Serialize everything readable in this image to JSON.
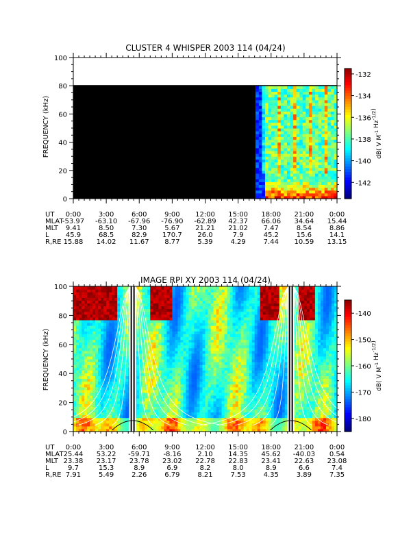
{
  "chart_data": [
    {
      "type": "heatmap",
      "title": "CLUSTER 4 WHISPER 2003 114 (04/24)",
      "ylabel": "FREQUENCY (kHz)",
      "ylim": [
        0,
        100
      ],
      "yticks": [
        0,
        20,
        40,
        60,
        80,
        100
      ],
      "x_ticks": [
        "0:00",
        "3:00",
        "6:00",
        "9:00",
        "12:00",
        "15:00",
        "18:00",
        "21:00",
        "0:00"
      ],
      "colorbar": {
        "label_prefix": "dB( V M",
        "label_exp1": "-1",
        "label_mid": " Hz",
        "label_exp2": "-1/2",
        "label_suffix": ")",
        "range": [
          -143.5,
          -131.5
        ],
        "ticks": [
          -132,
          -134,
          -136,
          -138,
          -140,
          -142
        ]
      },
      "data_extent": {
        "freq_max_khz": 80,
        "data_start_hour": 16.6
      },
      "ephemeris": {
        "rows": [
          {
            "name": "UT",
            "values": [
              "0:00",
              "3:00",
              "6:00",
              "9:00",
              "12:00",
              "15:00",
              "18:00",
              "21:00",
              "0:00"
            ]
          },
          {
            "name": "MLAT",
            "values": [
              "-53.97",
              "-63.10",
              "-67.96",
              "-76.90",
              "-62.89",
              "42.37",
              "66.06",
              "34.64",
              "15.44"
            ]
          },
          {
            "name": "MLT",
            "values": [
              "9.41",
              "8.50",
              "7.30",
              "5.67",
              "21.21",
              "21.02",
              "7.47",
              "8.54",
              "8.86"
            ]
          },
          {
            "name": "L",
            "values": [
              "45.9",
              "68.5",
              "82.9",
              "170.7",
              "26.0",
              "7.9",
              "45.2",
              "15.6",
              "14.1"
            ]
          },
          {
            "name": "R,RE",
            "values": [
              "15.88",
              "14.02",
              "11.67",
              "8.77",
              "5.39",
              "4.29",
              "7.44",
              "10.59",
              "13.15"
            ]
          }
        ]
      }
    },
    {
      "type": "heatmap",
      "title": "IMAGE RPI XY 2003 114 (04/24)",
      "ylabel": "FREQUENCY (kHz)",
      "ylim": [
        0,
        100
      ],
      "yticks": [
        0,
        20,
        40,
        60,
        80,
        100
      ],
      "x_ticks": [
        "0:00",
        "3:00",
        "6:00",
        "9:00",
        "12:00",
        "15:00",
        "18:00",
        "21:00",
        "0:00"
      ],
      "colorbar": {
        "label_prefix": "dB( V M",
        "label_exp1": "-1",
        "label_mid": " Hz",
        "label_exp2": "-1/2",
        "label_suffix": ")",
        "range": [
          -185,
          -135
        ],
        "ticks": [
          -140,
          -150,
          -160,
          -170,
          -180
        ]
      },
      "perigee_hours": [
        5.4,
        19.8
      ],
      "ephemeris": {
        "rows": [
          {
            "name": "UT",
            "values": [
              "0:00",
              "3:00",
              "6:00",
              "9:00",
              "12:00",
              "15:00",
              "18:00",
              "21:00",
              "0:00"
            ]
          },
          {
            "name": "MLAT",
            "values": [
              "25.44",
              "53.22",
              "-59.71",
              "-8.16",
              "2.10",
              "14.35",
              "45.62",
              "-40.03",
              "0.54"
            ]
          },
          {
            "name": "MLT",
            "values": [
              "23.38",
              "23.17",
              "23.78",
              "23.02",
              "22.78",
              "22.83",
              "23.41",
              "22.63",
              "23.08"
            ]
          },
          {
            "name": "L",
            "values": [
              "9.7",
              "15.3",
              "8.9",
              "6.9",
              "8.2",
              "8.0",
              "8.9",
              "6.6",
              "7.4"
            ]
          },
          {
            "name": "R,RE",
            "values": [
              "7.91",
              "5.49",
              "2.26",
              "6.79",
              "8.21",
              "7.53",
              "4.35",
              "3.89",
              "7.35"
            ]
          }
        ]
      }
    }
  ]
}
